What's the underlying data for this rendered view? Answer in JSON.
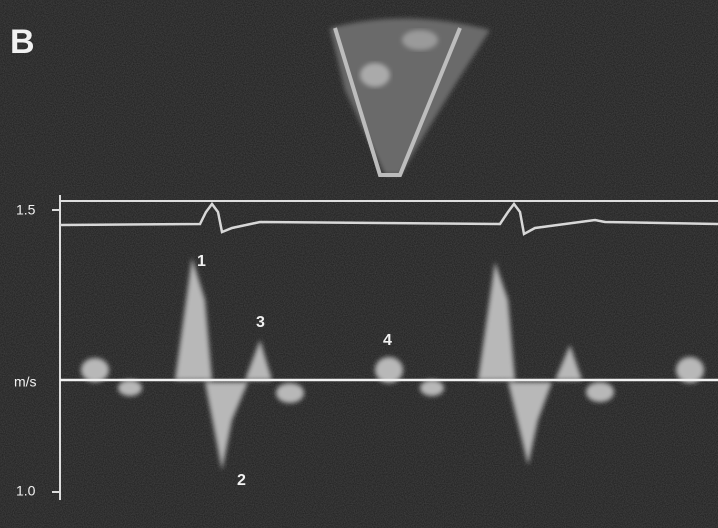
{
  "panel_label": "B",
  "scale": {
    "top": "1.5",
    "unit": "m/s",
    "bottom": "1.0"
  },
  "annotations": [
    "1",
    "2",
    "3",
    "4"
  ]
}
